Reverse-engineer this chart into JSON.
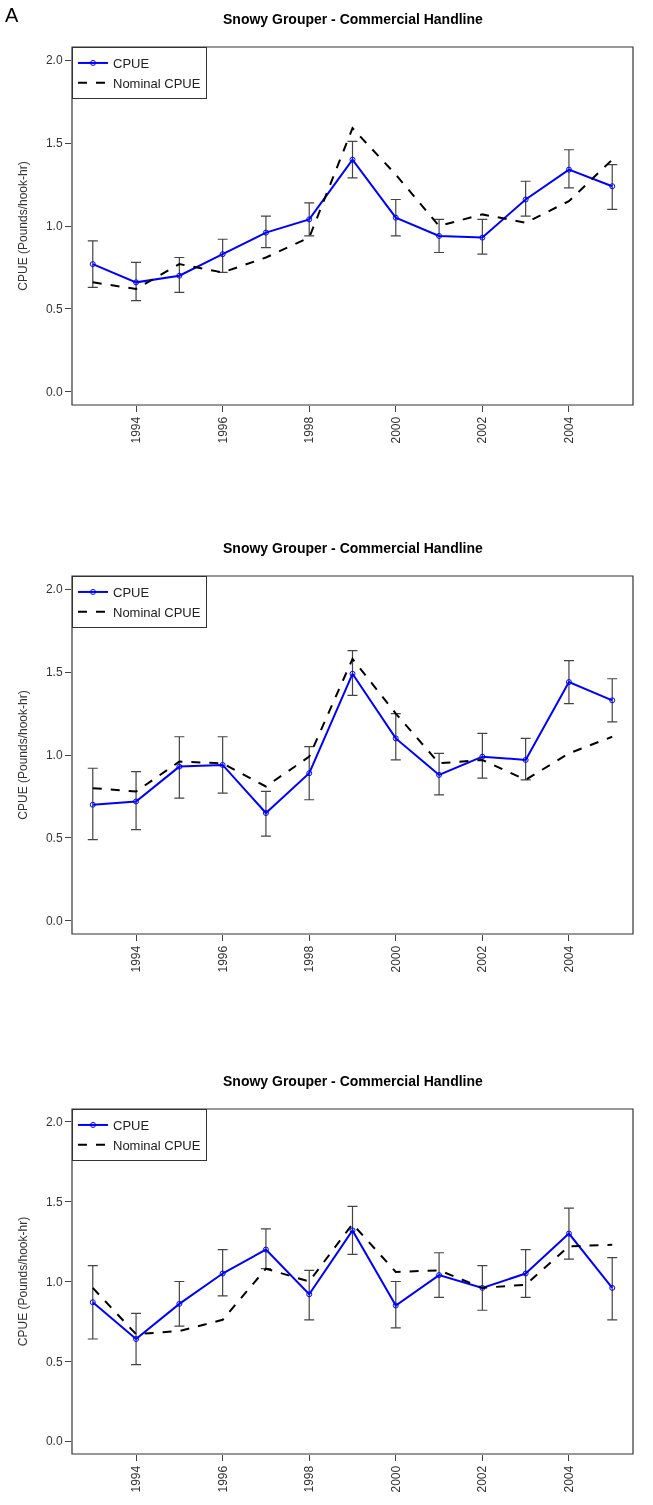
{
  "chart_data": [
    {
      "type": "line",
      "title": "Snowy Grouper - Commercial Handline",
      "ylabel": "CPUE (Pounds/hook-hr)",
      "annotations": [
        "A"
      ],
      "x": [
        1993,
        1994,
        1995,
        1996,
        1997,
        1998,
        1999,
        2000,
        2001,
        2002,
        2003,
        2004,
        2005
      ],
      "xlim": [
        1992.52,
        2005.48
      ],
      "xticks": [
        1994,
        1996,
        1998,
        2000,
        2002,
        2004
      ],
      "ylim": [
        -0.08,
        2.08
      ],
      "yticks": [
        {
          "value": 0,
          "label": "0.0"
        },
        {
          "value": 0.5,
          "label": "0.5"
        },
        {
          "value": 1,
          "label": "1.0"
        },
        {
          "value": 1.5,
          "label": "1.5"
        },
        {
          "value": 2,
          "label": "2.0"
        }
      ],
      "legend": "top left",
      "series": [
        {
          "name": "CPUE",
          "color": "#0000ff",
          "marker": "circle",
          "line_style": "solid",
          "values": [
            0.77,
            0.66,
            0.7,
            0.83,
            0.96,
            1.04,
            1.4,
            1.05,
            0.94,
            0.93,
            1.16,
            1.34,
            1.24
          ],
          "errors": [
            [
              0.63,
              0.91
            ],
            [
              0.55,
              0.78
            ],
            [
              0.6,
              0.81
            ],
            [
              0.72,
              0.92
            ],
            [
              0.87,
              1.06
            ],
            [
              0.94,
              1.14
            ],
            [
              1.29,
              1.51
            ],
            [
              0.94,
              1.16
            ],
            [
              0.84,
              1.04
            ],
            [
              0.83,
              1.04
            ],
            [
              1.06,
              1.27
            ],
            [
              1.23,
              1.46
            ],
            [
              1.1,
              1.37
            ]
          ]
        },
        {
          "name": "Nominal CPUE",
          "color": "#000000",
          "marker": "none",
          "line_style": "dashed",
          "values": [
            0.66,
            0.62,
            0.77,
            0.72,
            0.81,
            0.93,
            1.59,
            1.31,
            1.0,
            1.07,
            1.02,
            1.15,
            1.4
          ]
        }
      ]
    },
    {
      "type": "line",
      "title": "Snowy Grouper - Commercial Handline",
      "ylabel": "CPUE (Pounds/hook-hr)",
      "x": [
        1993,
        1994,
        1995,
        1996,
        1997,
        1998,
        1999,
        2000,
        2001,
        2002,
        2003,
        2004,
        2005
      ],
      "xlim": [
        1992.52,
        2005.48
      ],
      "xticks": [
        1994,
        1996,
        1998,
        2000,
        2002,
        2004
      ],
      "ylim": [
        -0.08,
        2.08
      ],
      "yticks": [
        {
          "value": 0,
          "label": "0.0"
        },
        {
          "value": 0.5,
          "label": "0.5"
        },
        {
          "value": 1,
          "label": "1.0"
        },
        {
          "value": 1.5,
          "label": "1.5"
        },
        {
          "value": 2,
          "label": "2.0"
        }
      ],
      "legend": "top left",
      "series": [
        {
          "name": "CPUE",
          "color": "#0000ff",
          "marker": "circle",
          "line_style": "solid",
          "values": [
            0.7,
            0.72,
            0.93,
            0.94,
            0.65,
            0.89,
            1.49,
            1.1,
            0.88,
            0.99,
            0.97,
            1.44,
            1.33
          ],
          "errors": [
            [
              0.49,
              0.92
            ],
            [
              0.55,
              0.9
            ],
            [
              0.74,
              1.11
            ],
            [
              0.77,
              1.11
            ],
            [
              0.51,
              0.78
            ],
            [
              0.73,
              1.05
            ],
            [
              1.36,
              1.63
            ],
            [
              0.97,
              1.25
            ],
            [
              0.76,
              1.01
            ],
            [
              0.86,
              1.13
            ],
            [
              0.85,
              1.1
            ],
            [
              1.31,
              1.57
            ],
            [
              1.2,
              1.46
            ]
          ]
        },
        {
          "name": "Nominal CPUE",
          "color": "#000000",
          "marker": "none",
          "line_style": "dashed",
          "values": [
            0.8,
            0.78,
            0.96,
            0.95,
            0.81,
            0.99,
            1.58,
            1.25,
            0.95,
            0.97,
            0.85,
            1.01,
            1.11
          ]
        }
      ]
    },
    {
      "type": "line",
      "title": "Snowy Grouper - Commercial Handline",
      "ylabel": "CPUE (Pounds/hook-hr)",
      "x": [
        1993,
        1994,
        1995,
        1996,
        1997,
        1998,
        1999,
        2000,
        2001,
        2002,
        2003,
        2004,
        2005
      ],
      "xlim": [
        1992.52,
        2005.48
      ],
      "xticks": [
        1994,
        1996,
        1998,
        2000,
        2002,
        2004
      ],
      "ylim": [
        -0.08,
        2.08
      ],
      "yticks": [
        {
          "value": 0,
          "label": "0.0"
        },
        {
          "value": 0.5,
          "label": "0.5"
        },
        {
          "value": 1,
          "label": "1.0"
        },
        {
          "value": 1.5,
          "label": "1.5"
        },
        {
          "value": 2,
          "label": "2.0"
        }
      ],
      "legend": "top left",
      "series": [
        {
          "name": "CPUE",
          "color": "#0000ff",
          "marker": "circle",
          "line_style": "solid",
          "values": [
            0.87,
            0.64,
            0.86,
            1.05,
            1.2,
            0.92,
            1.32,
            0.85,
            1.04,
            0.96,
            1.05,
            1.3,
            0.96
          ],
          "errors": [
            [
              0.64,
              1.1
            ],
            [
              0.48,
              0.8
            ],
            [
              0.72,
              1.0
            ],
            [
              0.91,
              1.2
            ],
            [
              1.08,
              1.33
            ],
            [
              0.76,
              1.07
            ],
            [
              1.17,
              1.47
            ],
            [
              0.71,
              1.0
            ],
            [
              0.9,
              1.18
            ],
            [
              0.82,
              1.1
            ],
            [
              0.9,
              1.2
            ],
            [
              1.14,
              1.46
            ],
            [
              0.76,
              1.15
            ]
          ]
        },
        {
          "name": "Nominal CPUE",
          "color": "#000000",
          "marker": "none",
          "line_style": "dashed",
          "values": [
            0.96,
            0.67,
            0.69,
            0.76,
            1.08,
            1.0,
            1.36,
            1.06,
            1.07,
            0.96,
            0.98,
            1.22,
            1.23
          ]
        }
      ]
    }
  ]
}
